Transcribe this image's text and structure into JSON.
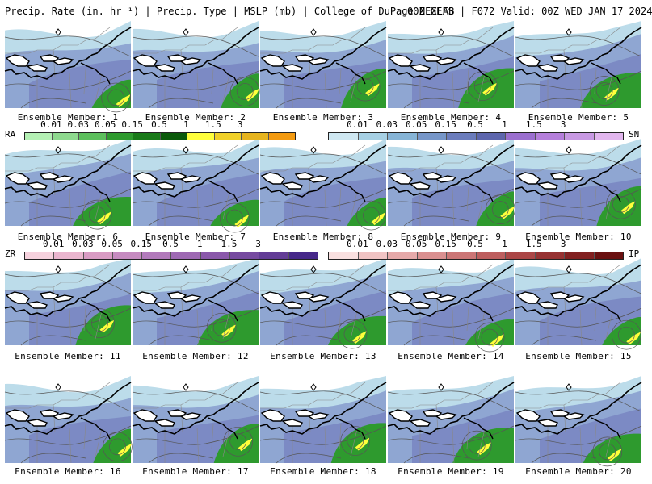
{
  "header": {
    "left": "Precip. Rate (in. hr⁻¹) | Precip. Type | MSLP (mb) | College of DuPage NEXLAB",
    "right": "00Z GEFS | F072 Valid: 00Z WED JAN 17 2024"
  },
  "member_prefix": "Ensemble Member: ",
  "members": [
    "1",
    "2",
    "3",
    "4",
    "5",
    "6",
    "7",
    "8",
    "9",
    "10",
    "11",
    "12",
    "13",
    "14",
    "15",
    "16",
    "17",
    "18",
    "19",
    "20"
  ],
  "legends": {
    "ra": {
      "type": "RA",
      "ticks": [
        "0.01",
        "0.03",
        "0.05",
        "0.15",
        "0.5",
        "1",
        "1.5",
        "3"
      ],
      "colors": [
        "#b4f0b4",
        "#8ed98e",
        "#5cbf5c",
        "#2e9a2e",
        "#197a19",
        "#0b5a0b",
        "#ffff3c",
        "#f0d028",
        "#e6b41e",
        "#f39a10"
      ]
    },
    "sn": {
      "type": "SN",
      "ticks": [
        "0.01",
        "0.03",
        "0.05",
        "0.15",
        "0.5",
        "1",
        "1.5",
        "3"
      ],
      "colors": [
        "#cfe8f2",
        "#a6d0e4",
        "#86b4d6",
        "#7696c8",
        "#6b7cbc",
        "#5d66ad",
        "#9b6fcf",
        "#b57fdb",
        "#c899e3",
        "#e2b6ee"
      ]
    },
    "zr": {
      "type": "ZR",
      "ticks": [
        "0.01",
        "0.03",
        "0.05",
        "0.15",
        "0.5",
        "1",
        "1.5",
        "3"
      ],
      "colors": [
        "#f6d2de",
        "#eab6cf",
        "#d99cc4",
        "#c68bc0",
        "#b27abb",
        "#9e69b3",
        "#8a58aa",
        "#764aa0",
        "#623c96",
        "#46288a"
      ]
    },
    "ip": {
      "type": "IP",
      "ticks": [
        "0.01",
        "0.03",
        "0.05",
        "0.15",
        "0.5",
        "1",
        "1.5",
        "3"
      ],
      "colors": [
        "#f9e0e0",
        "#f0c4c4",
        "#e6aaaa",
        "#da9090",
        "#cc7676",
        "#bd5e5e",
        "#ab4646",
        "#973232",
        "#822020",
        "#6a1010"
      ]
    }
  }
}
